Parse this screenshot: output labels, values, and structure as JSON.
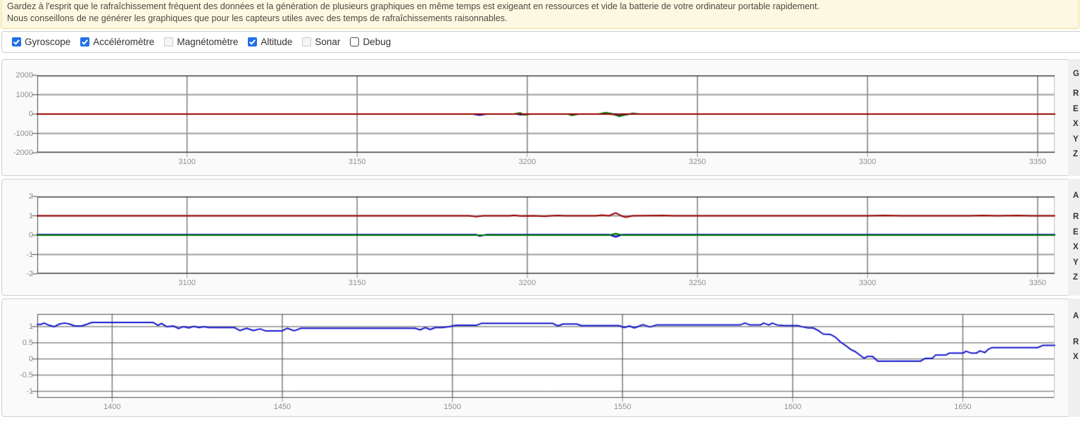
{
  "banner": {
    "line1": "Gardez à l'esprit que le rafraîchissement fréquent des données et la génération de plusieurs graphiques en même temps est exigeant en ressources et vide la batterie de votre ordinateur portable rapidement.",
    "line2": "Nous conseillons de ne générer les graphiques que pour les capteurs utiles avec des temps de rafraîchissements raisonnables.",
    "background": "#fdf8e2",
    "border_color": "#f0da87",
    "text_color": "#4c4a40"
  },
  "sensors": {
    "accent_color": "#2170e8",
    "items": [
      {
        "id": "gyroscope",
        "label": "Gyroscope",
        "checked": true,
        "muted": false
      },
      {
        "id": "accelerometre",
        "label": "Accéléromètre",
        "checked": true,
        "muted": false
      },
      {
        "id": "magnetometre",
        "label": "Magnétomètre",
        "checked": false,
        "muted": true
      },
      {
        "id": "altitude",
        "label": "Altitude",
        "checked": true,
        "muted": false
      },
      {
        "id": "sonar",
        "label": "Sonar",
        "checked": false,
        "muted": true
      },
      {
        "id": "debug",
        "label": "Debug",
        "checked": false,
        "muted": false
      }
    ]
  },
  "chart_data": [
    {
      "id": "gyroscope",
      "type": "line",
      "legend_visible_text": [
        "G",
        "R",
        "E",
        "X",
        "Y",
        "Z"
      ],
      "xlim": [
        3056,
        3355
      ],
      "ylim": [
        -2000,
        2000
      ],
      "xticks": [
        3100,
        3150,
        3200,
        3250,
        3300,
        3350
      ],
      "yticks": [
        2000,
        1000,
        0,
        -1000,
        -2000
      ],
      "mid_gridlines": [
        1000,
        0,
        -1000
      ],
      "grid": "major",
      "legend_position": "right-cutoff",
      "series": [
        {
          "name": "X",
          "color": "#0000cd",
          "points": [
            [
              3056,
              0
            ],
            [
              3184,
              0
            ],
            [
              3186,
              -55
            ],
            [
              3188,
              0
            ],
            [
              3197,
              0
            ],
            [
              3198,
              -35
            ],
            [
              3200,
              0
            ],
            [
              3226,
              0
            ],
            [
              3228,
              -60
            ],
            [
              3230,
              0
            ],
            [
              3355,
              0
            ]
          ]
        },
        {
          "name": "Y",
          "color": "#007a00",
          "points": [
            [
              3056,
              0
            ],
            [
              3196,
              0
            ],
            [
              3198,
              60
            ],
            [
              3199,
              -45
            ],
            [
              3201,
              0
            ],
            [
              3212,
              0
            ],
            [
              3213,
              -70
            ],
            [
              3215,
              0
            ],
            [
              3221,
              0
            ],
            [
              3223,
              70
            ],
            [
              3225,
              20
            ],
            [
              3227,
              -120
            ],
            [
              3229,
              -30
            ],
            [
              3231,
              40
            ],
            [
              3233,
              0
            ],
            [
              3355,
              0
            ]
          ]
        },
        {
          "name": "Z",
          "color": "#9a0000",
          "points": [
            [
              3056,
              0
            ],
            [
              3224,
              0
            ],
            [
              3226,
              -25
            ],
            [
              3228,
              0
            ],
            [
              3355,
              0
            ]
          ]
        }
      ]
    },
    {
      "id": "accelerometre",
      "type": "line",
      "legend_visible_text": [
        "A",
        "R",
        "E",
        "X",
        "Y",
        "Z"
      ],
      "xlim": [
        3056,
        3355
      ],
      "ylim": [
        -2,
        2
      ],
      "xticks": [
        3100,
        3150,
        3200,
        3250,
        3300,
        3350
      ],
      "yticks": [
        2,
        1,
        0,
        -1,
        -2
      ],
      "mid_gridlines": [
        1,
        0,
        -1
      ],
      "grid": "major",
      "legend_position": "right-cutoff",
      "series": [
        {
          "name": "X",
          "color": "#0000cd",
          "points": [
            [
              3056,
              0.03
            ],
            [
              3185,
              0.03
            ],
            [
              3186,
              -0.05
            ],
            [
              3188,
              0.03
            ],
            [
              3224,
              0.03
            ],
            [
              3226,
              -0.09
            ],
            [
              3228,
              0.03
            ],
            [
              3355,
              0.03
            ]
          ]
        },
        {
          "name": "Y",
          "color": "#007a00",
          "points": [
            [
              3056,
              0
            ],
            [
              3224,
              0
            ],
            [
              3226,
              0.08
            ],
            [
              3228,
              0
            ],
            [
              3355,
              0
            ]
          ]
        },
        {
          "name": "Z",
          "color": "#9a0000",
          "points": [
            [
              3056,
              1
            ],
            [
              3183,
              1
            ],
            [
              3185,
              0.95
            ],
            [
              3187,
              1
            ],
            [
              3195,
              1
            ],
            [
              3196,
              1.03
            ],
            [
              3198,
              0.99
            ],
            [
              3202,
              1
            ],
            [
              3205,
              0.97
            ],
            [
              3207,
              1
            ],
            [
              3209,
              1.02
            ],
            [
              3211,
              1
            ],
            [
              3220,
              1
            ],
            [
              3222,
              1.04
            ],
            [
              3224,
              1
            ],
            [
              3226,
              1.15
            ],
            [
              3228,
              0.97
            ],
            [
              3229,
              0.93
            ],
            [
              3231,
              1
            ],
            [
              3240,
              1.02
            ],
            [
              3243,
              1
            ],
            [
              3300,
              1
            ],
            [
              3305,
              1.02
            ],
            [
              3310,
              1
            ],
            [
              3330,
              1
            ],
            [
              3334,
              1.02
            ],
            [
              3338,
              1
            ],
            [
              3344,
              1.02
            ],
            [
              3348,
              1
            ],
            [
              3355,
              1
            ]
          ]
        }
      ]
    },
    {
      "id": "altitude",
      "type": "line",
      "legend_visible_text": [
        "A",
        "R",
        "X"
      ],
      "xlim": [
        1378,
        1677
      ],
      "ylim": [
        -1.2,
        1.39
      ],
      "xticks": [
        1400,
        1450,
        1500,
        1550,
        1600,
        1650
      ],
      "yticks": [
        1,
        0.5,
        0,
        -0.5,
        -1
      ],
      "mid_gridlines": [
        1,
        0.5,
        0,
        -0.5,
        -1
      ],
      "grid": "all",
      "legend_position": "right-cutoff",
      "series": [
        {
          "name": "X",
          "color": "#1717cf",
          "points": [
            [
              1378,
              1.07
            ],
            [
              1379,
              1.07
            ],
            [
              1380,
              1.11
            ],
            [
              1381.5,
              1.04
            ],
            [
              1383,
              1.0
            ],
            [
              1384.5,
              1.08
            ],
            [
              1386,
              1.11
            ],
            [
              1387.5,
              1.08
            ],
            [
              1389,
              1.02
            ],
            [
              1391,
              1.02
            ],
            [
              1392.5,
              1.07
            ],
            [
              1394,
              1.13
            ],
            [
              1412,
              1.13
            ],
            [
              1413.5,
              1.04
            ],
            [
              1414.5,
              1.1
            ],
            [
              1416,
              1.0
            ],
            [
              1418,
              1.02
            ],
            [
              1419.5,
              0.94
            ],
            [
              1421,
              1.0
            ],
            [
              1422.5,
              0.96
            ],
            [
              1424,
              1.01
            ],
            [
              1425.5,
              0.97
            ],
            [
              1427,
              1.0
            ],
            [
              1428.5,
              0.97
            ],
            [
              1436,
              0.97
            ],
            [
              1437.5,
              0.88
            ],
            [
              1439.5,
              0.95
            ],
            [
              1441.5,
              0.88
            ],
            [
              1443.5,
              0.93
            ],
            [
              1445,
              0.87
            ],
            [
              1450,
              0.87
            ],
            [
              1451.5,
              0.95
            ],
            [
              1453.5,
              0.87
            ],
            [
              1455.5,
              0.95
            ],
            [
              1489,
              0.95
            ],
            [
              1490.5,
              0.9
            ],
            [
              1492,
              0.97
            ],
            [
              1493.5,
              0.91
            ],
            [
              1495,
              0.97
            ],
            [
              1497,
              0.97
            ],
            [
              1499,
              1.0
            ],
            [
              1501,
              1.04
            ],
            [
              1507,
              1.04
            ],
            [
              1508.5,
              1.1
            ],
            [
              1529.5,
              1.1
            ],
            [
              1531,
              1.02
            ],
            [
              1532.5,
              1.08
            ],
            [
              1536.5,
              1.08
            ],
            [
              1538,
              1.03
            ],
            [
              1549,
              1.03
            ],
            [
              1550.5,
              0.97
            ],
            [
              1552,
              1.02
            ],
            [
              1553.5,
              0.96
            ],
            [
              1556,
              1.06
            ],
            [
              1558,
              0.99
            ],
            [
              1560,
              1.05
            ],
            [
              1584.5,
              1.05
            ],
            [
              1586,
              1.11
            ],
            [
              1587.5,
              1.05
            ],
            [
              1590.5,
              1.05
            ],
            [
              1591.5,
              1.11
            ],
            [
              1593,
              1.05
            ],
            [
              1594,
              1.11
            ],
            [
              1595.5,
              1.05
            ],
            [
              1597.5,
              1.03
            ],
            [
              1601.5,
              1.03
            ],
            [
              1603,
              0.99
            ],
            [
              1604.5,
              0.96
            ],
            [
              1606,
              0.96
            ],
            [
              1607.5,
              0.88
            ],
            [
              1609,
              0.77
            ],
            [
              1611,
              0.76
            ],
            [
              1612.5,
              0.68
            ],
            [
              1614,
              0.53
            ],
            [
              1615.5,
              0.42
            ],
            [
              1617,
              0.3
            ],
            [
              1618.5,
              0.22
            ],
            [
              1620,
              0.1
            ],
            [
              1621,
              0.02
            ],
            [
              1622,
              0.08
            ],
            [
              1623.5,
              0.08
            ],
            [
              1625,
              -0.07
            ],
            [
              1637.5,
              -0.07
            ],
            [
              1639,
              0.02
            ],
            [
              1641,
              0.02
            ],
            [
              1642,
              0.12
            ],
            [
              1645,
              0.12
            ],
            [
              1646,
              0.18
            ],
            [
              1650,
              0.18
            ],
            [
              1651,
              0.24
            ],
            [
              1652.5,
              0.18
            ],
            [
              1654,
              0.18
            ],
            [
              1655,
              0.25
            ],
            [
              1656.5,
              0.2
            ],
            [
              1657.5,
              0.3
            ],
            [
              1658.5,
              0.35
            ],
            [
              1672,
              0.35
            ],
            [
              1673.5,
              0.42
            ],
            [
              1677,
              0.42
            ]
          ]
        }
      ]
    }
  ]
}
